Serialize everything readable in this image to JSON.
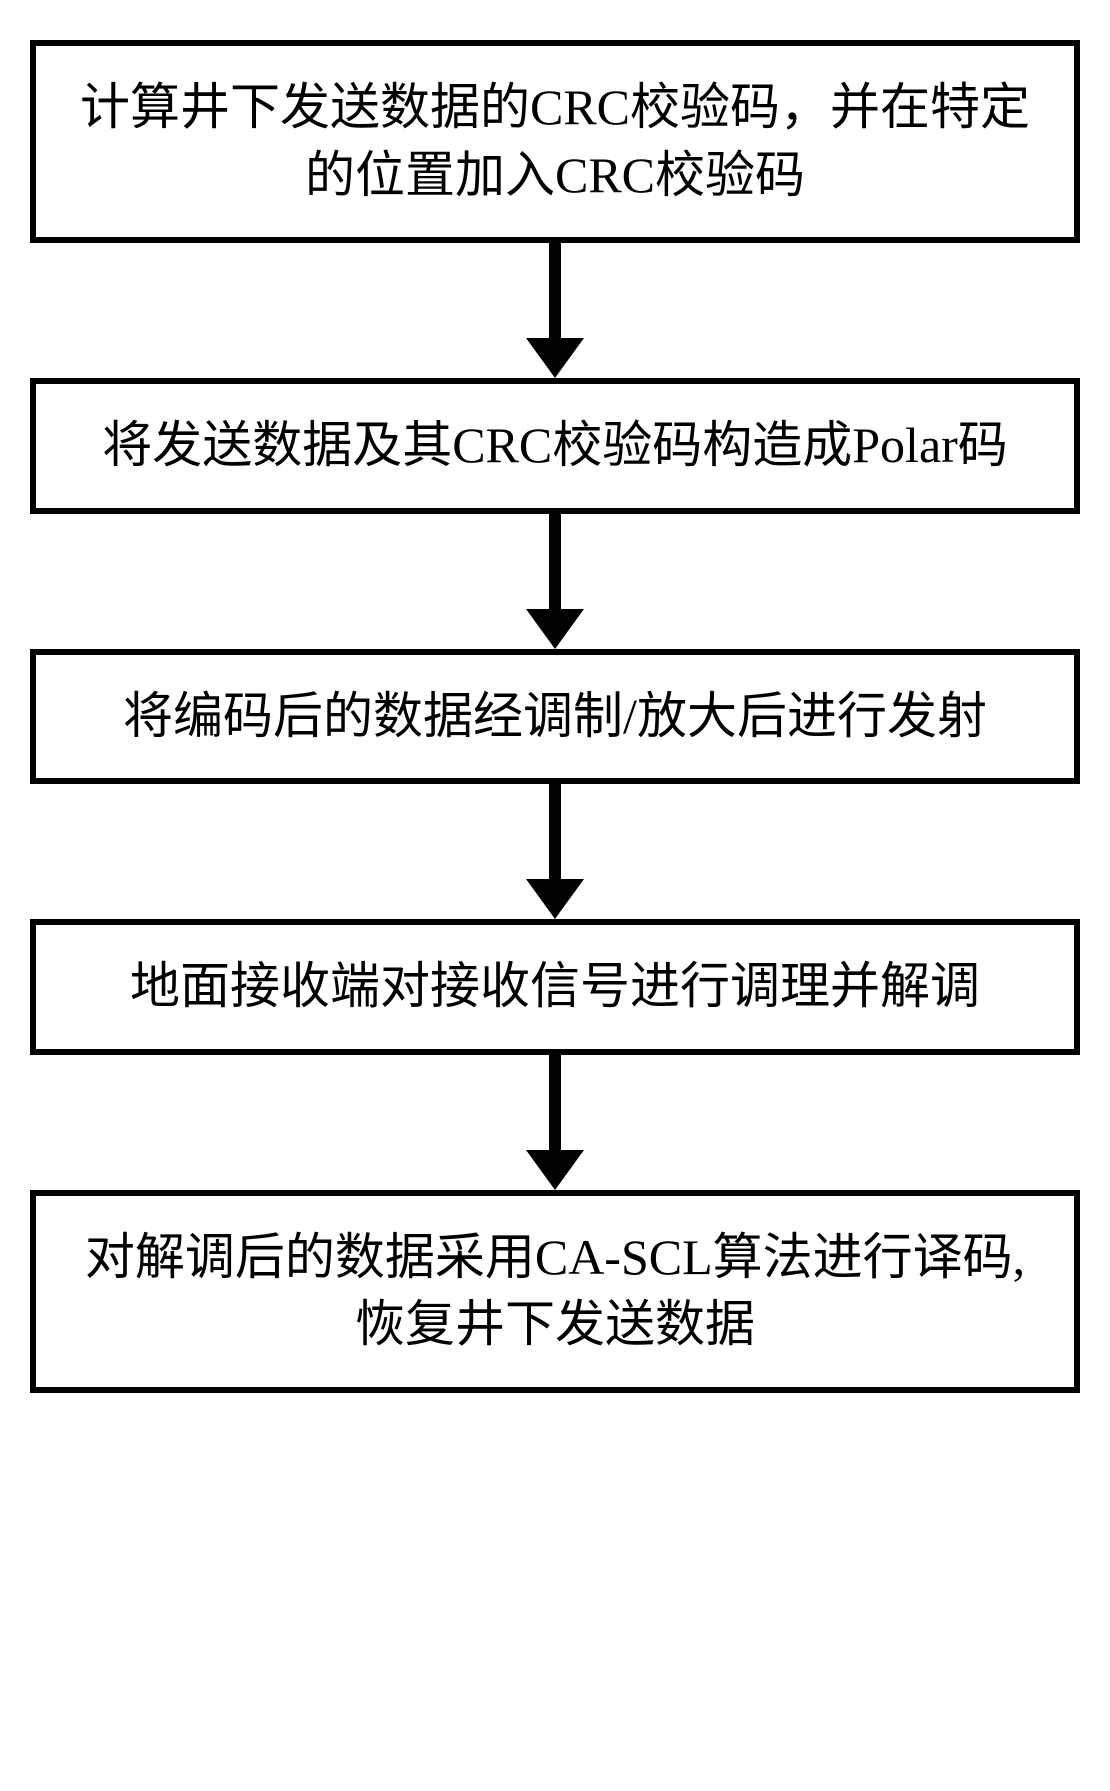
{
  "flowchart": {
    "type": "flowchart",
    "direction": "vertical",
    "background_color": "#ffffff",
    "box_border_color": "#000000",
    "box_border_width": 6,
    "box_fill": "#ffffff",
    "text_color": "#000000",
    "font_family": "SimSun",
    "font_size_pt": 38,
    "arrow_color": "#000000",
    "arrow_shaft_width": 12,
    "arrow_shaft_length": 95,
    "arrow_head_width": 58,
    "arrow_head_height": 40,
    "nodes": [
      {
        "id": "n1",
        "label": "计算井下发送数据的CRC校验码，并在特定\n的位置加入CRC校验码"
      },
      {
        "id": "n2",
        "label": "将发送数据及其CRC校验码构造成Polar码"
      },
      {
        "id": "n3",
        "label": "将编码后的数据经调制/放大后进行发射"
      },
      {
        "id": "n4",
        "label": "地面接收端对接收信号进行调理并解调"
      },
      {
        "id": "n5",
        "label": "对解调后的数据采用CA-SCL算法进行译码,\n恢复井下发送数据"
      }
    ],
    "edges": [
      {
        "from": "n1",
        "to": "n2"
      },
      {
        "from": "n2",
        "to": "n3"
      },
      {
        "from": "n3",
        "to": "n4"
      },
      {
        "from": "n4",
        "to": "n5"
      }
    ]
  }
}
